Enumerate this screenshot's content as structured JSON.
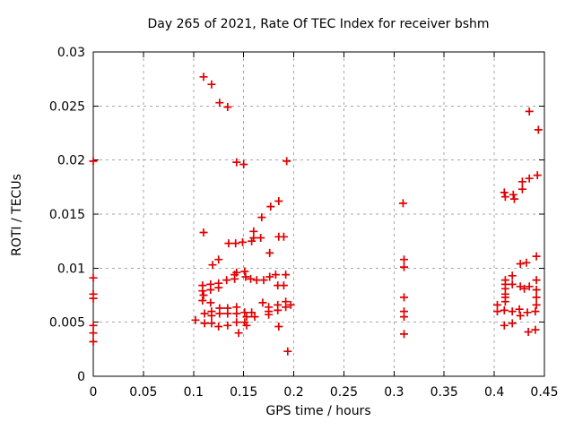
{
  "chart_data": {
    "type": "scatter",
    "title": "Day 265 of 2021, Rate Of TEC Index for receiver bshm",
    "xlabel": "GPS time / hours",
    "ylabel": "ROTI / TECUs",
    "xlim": [
      0,
      0.45
    ],
    "ylim": [
      0,
      0.03
    ],
    "xticks": {
      "values": [
        0,
        0.05,
        0.1,
        0.15,
        0.2,
        0.25,
        0.3,
        0.35,
        0.4,
        0.45
      ],
      "labels": [
        "0",
        "0.05",
        "0.1",
        "0.15",
        "0.2",
        "0.25",
        "0.3",
        "0.35",
        "0.4",
        "0.45"
      ]
    },
    "yticks": {
      "values": [
        0,
        0.005,
        0.01,
        0.015,
        0.02,
        0.025,
        0.03
      ],
      "labels": [
        "0",
        "0.005",
        "0.01",
        "0.015",
        "0.02",
        "0.025",
        "0.03"
      ]
    },
    "grid": true,
    "legend": "none",
    "marker": {
      "shape": "plus",
      "color": "#e00000",
      "size": 4.5
    },
    "colors": {
      "background": "#ffffff",
      "axis": "#000000",
      "grid": "#a6a6a6"
    },
    "series": [
      {
        "name": "ROTI",
        "points": [
          [
            0,
            0.0199
          ],
          [
            0,
            0.0091
          ],
          [
            0,
            0.0076
          ],
          [
            0,
            0.0072
          ],
          [
            0,
            0.0047
          ],
          [
            0,
            0.004
          ],
          [
            0,
            0.0032
          ],
          [
            0.11,
            0.0277
          ],
          [
            0.118,
            0.027
          ],
          [
            0.126,
            0.0253
          ],
          [
            0.134,
            0.0249
          ],
          [
            0.143,
            0.0198
          ],
          [
            0.15,
            0.0196
          ],
          [
            0.193,
            0.0199
          ],
          [
            0.11,
            0.0133
          ],
          [
            0.119,
            0.0103
          ],
          [
            0.125,
            0.0108
          ],
          [
            0.135,
            0.0123
          ],
          [
            0.142,
            0.0123
          ],
          [
            0.149,
            0.0124
          ],
          [
            0.158,
            0.0125
          ],
          [
            0.16,
            0.0134
          ],
          [
            0.16,
            0.0128
          ],
          [
            0.167,
            0.0128
          ],
          [
            0.168,
            0.0147
          ],
          [
            0.176,
            0.0114
          ],
          [
            0.177,
            0.0157
          ],
          [
            0.185,
            0.0162
          ],
          [
            0.185,
            0.0129
          ],
          [
            0.19,
            0.0129
          ],
          [
            0.125,
            0.0086
          ],
          [
            0.125,
            0.0082
          ],
          [
            0.133,
            0.0089
          ],
          [
            0.141,
            0.0094
          ],
          [
            0.141,
            0.009
          ],
          [
            0.143,
            0.0096
          ],
          [
            0.151,
            0.0097
          ],
          [
            0.152,
            0.0092
          ],
          [
            0.157,
            0.009
          ],
          [
            0.163,
            0.0089
          ],
          [
            0.17,
            0.0089
          ],
          [
            0.176,
            0.0092
          ],
          [
            0.182,
            0.0094
          ],
          [
            0.192,
            0.0094
          ],
          [
            0.184,
            0.0084
          ],
          [
            0.19,
            0.0084
          ],
          [
            0.109,
            0.0084
          ],
          [
            0.109,
            0.0079
          ],
          [
            0.11,
            0.0075
          ],
          [
            0.109,
            0.007
          ],
          [
            0.117,
            0.0085
          ],
          [
            0.117,
            0.008
          ],
          [
            0.117,
            0.0068
          ],
          [
            0.111,
            0.0058
          ],
          [
            0.118,
            0.006
          ],
          [
            0.118,
            0.0056
          ],
          [
            0.126,
            0.0063
          ],
          [
            0.126,
            0.0058
          ],
          [
            0.134,
            0.0063
          ],
          [
            0.134,
            0.0058
          ],
          [
            0.143,
            0.0064
          ],
          [
            0.143,
            0.0058
          ],
          [
            0.151,
            0.0059
          ],
          [
            0.153,
            0.0055
          ],
          [
            0.158,
            0.0059
          ],
          [
            0.161,
            0.0055
          ],
          [
            0.169,
            0.0068
          ],
          [
            0.175,
            0.0064
          ],
          [
            0.175,
            0.006
          ],
          [
            0.175,
            0.0057
          ],
          [
            0.184,
            0.0066
          ],
          [
            0.184,
            0.0061
          ],
          [
            0.192,
            0.0069
          ],
          [
            0.192,
            0.0064
          ],
          [
            0.197,
            0.0066
          ],
          [
            0.102,
            0.0052
          ],
          [
            0.111,
            0.0049
          ],
          [
            0.118,
            0.0049
          ],
          [
            0.125,
            0.0046
          ],
          [
            0.134,
            0.0047
          ],
          [
            0.143,
            0.005
          ],
          [
            0.151,
            0.005
          ],
          [
            0.153,
            0.0047
          ],
          [
            0.145,
            0.004
          ],
          [
            0.185,
            0.0046
          ],
          [
            0.194,
            0.0023
          ],
          [
            0.309,
            0.016
          ],
          [
            0.31,
            0.0108
          ],
          [
            0.31,
            0.0101
          ],
          [
            0.31,
            0.0073
          ],
          [
            0.31,
            0.006
          ],
          [
            0.31,
            0.0055
          ],
          [
            0.31,
            0.0039
          ],
          [
            0.435,
            0.0245
          ],
          [
            0.444,
            0.0228
          ],
          [
            0.41,
            0.017
          ],
          [
            0.411,
            0.0166
          ],
          [
            0.419,
            0.0168
          ],
          [
            0.42,
            0.0164
          ],
          [
            0.428,
            0.0173
          ],
          [
            0.428,
            0.018
          ],
          [
            0.435,
            0.0183
          ],
          [
            0.443,
            0.0186
          ],
          [
            0.426,
            0.0104
          ],
          [
            0.432,
            0.0105
          ],
          [
            0.442,
            0.0111
          ],
          [
            0.411,
            0.0089
          ],
          [
            0.411,
            0.0085
          ],
          [
            0.411,
            0.0081
          ],
          [
            0.411,
            0.0076
          ],
          [
            0.411,
            0.0073
          ],
          [
            0.411,
            0.0069
          ],
          [
            0.418,
            0.0093
          ],
          [
            0.418,
            0.0085
          ],
          [
            0.426,
            0.0083
          ],
          [
            0.43,
            0.0081
          ],
          [
            0.435,
            0.0083
          ],
          [
            0.442,
            0.0089
          ],
          [
            0.442,
            0.008
          ],
          [
            0.442,
            0.0073
          ],
          [
            0.403,
            0.0066
          ],
          [
            0.403,
            0.006
          ],
          [
            0.41,
            0.0061
          ],
          [
            0.418,
            0.006
          ],
          [
            0.425,
            0.0062
          ],
          [
            0.426,
            0.0056
          ],
          [
            0.433,
            0.0059
          ],
          [
            0.441,
            0.006
          ],
          [
            0.442,
            0.0066
          ],
          [
            0.41,
            0.0047
          ],
          [
            0.418,
            0.0049
          ],
          [
            0.434,
            0.0041
          ],
          [
            0.441,
            0.0043
          ]
        ]
      }
    ]
  }
}
